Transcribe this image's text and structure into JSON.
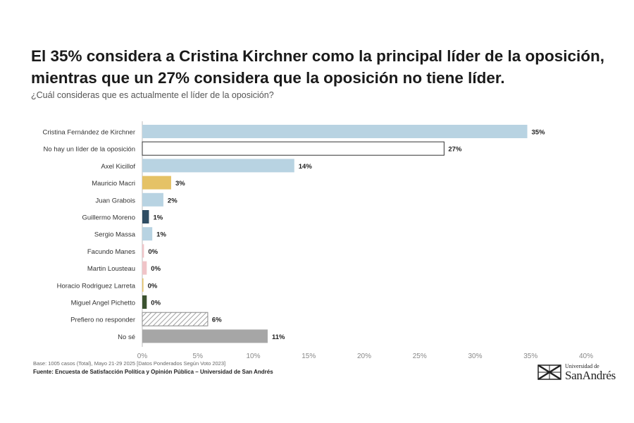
{
  "title": "El 35% considera a Cristina Kirchner como la principal líder de la oposición, mientras que un 27% considera que la oposición no tiene líder.",
  "subtitle": "¿Cuál consideras que es actualmente el líder de la oposición?",
  "footer": {
    "base": "Base: 1005 casos (Total), Mayo 21-29 2025 [Datos Ponderados Según Voto 2023]",
    "source": "Fuente: Encuesta de Satisfacción Política y Opinión Pública – Universidad de San Andrés"
  },
  "logo": {
    "line1": "Universidad de",
    "line2": "SanAndrés",
    "icon": "university-crest-icon"
  },
  "chart_data": {
    "type": "bar",
    "orientation": "horizontal",
    "categories": [
      "Cristina Fernández de Kirchner",
      "No hay un líder de la oposición",
      "Axel Kicillof",
      "Mauricio Macri",
      "Juan Grabois",
      "Guillermo Moreno",
      "Sergio Massa",
      "Facundo Manes",
      "Martin Lousteau",
      "Horacio Rodriguez Larreta",
      "Miguel Angel Pichetto",
      "Prefiero no responder",
      "No sé"
    ],
    "values": [
      34.7,
      27.2,
      13.7,
      2.6,
      1.9,
      0.6,
      0.9,
      0.15,
      0.4,
      0.1,
      0.4,
      5.9,
      11.3
    ],
    "value_labels": [
      "35%",
      "27%",
      "14%",
      "3%",
      "2%",
      "1%",
      "1%",
      "0%",
      "0%",
      "0%",
      "0%",
      "6%",
      "11%"
    ],
    "colors": [
      "#b8d3e2",
      "#ffffff",
      "#b8d3e2",
      "#e5c266",
      "#b8d3e2",
      "#2f4d63",
      "#b8d3e2",
      "#f0c4c8",
      "#f0c4c8",
      "#e5c266",
      "#3b5230",
      "hatch",
      "#a6a6a6"
    ],
    "x_ticks": [
      "0%",
      "5%",
      "10%",
      "15%",
      "20%",
      "25%",
      "30%",
      "35%",
      "40%"
    ],
    "xlim": [
      0,
      40
    ],
    "grid": false
  }
}
